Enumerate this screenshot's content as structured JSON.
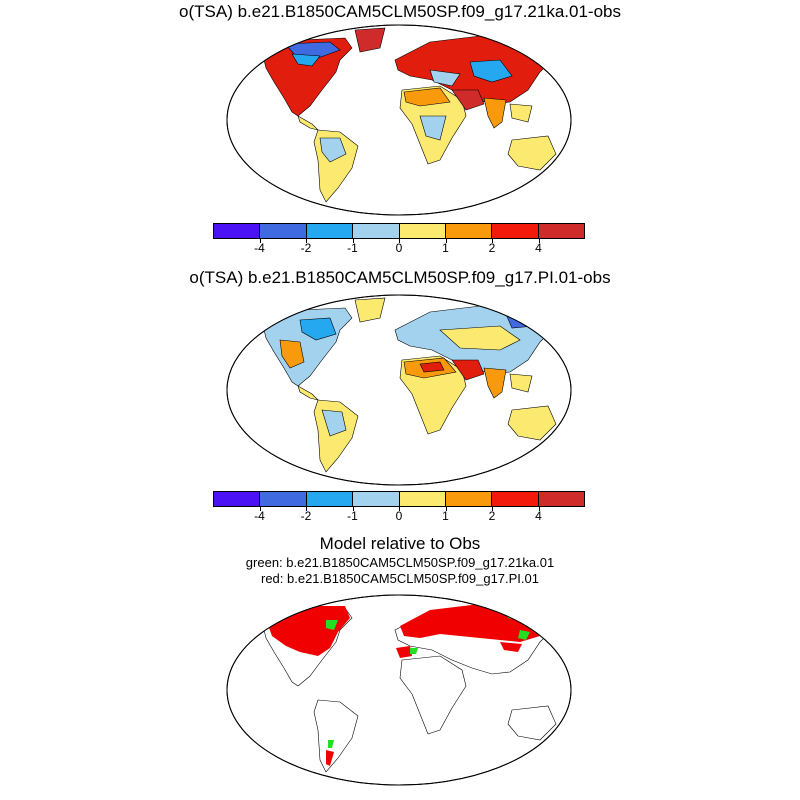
{
  "panels": [
    {
      "title": "o(TSA) b.e21.B1850CAM5CLM50SP.f09_g17.21ka.01-obs"
    },
    {
      "title": "o(TSA) b.e21.B1850CAM5CLM50SP.f09_g17.PI.01-obs"
    }
  ],
  "colorbar": {
    "colors": [
      "#4b12f5",
      "#3f6ae0",
      "#26a8f0",
      "#a2d2ee",
      "#fcea70",
      "#f89a0c",
      "#f31a0b",
      "#cf2b2b"
    ],
    "labels": [
      "-4",
      "-2",
      "-1",
      "0",
      "1",
      "2",
      "4"
    ]
  },
  "relative": {
    "title": "Model relative to Obs",
    "green_label": "green: b.e21.B1850CAM5CLM50SP.f09_g17.21ka.01",
    "red_label": "red: b.e21.B1850CAM5CLM50SP.f09_g17.PI.01",
    "green_color": "#21e021",
    "red_color": "#f00000"
  }
}
